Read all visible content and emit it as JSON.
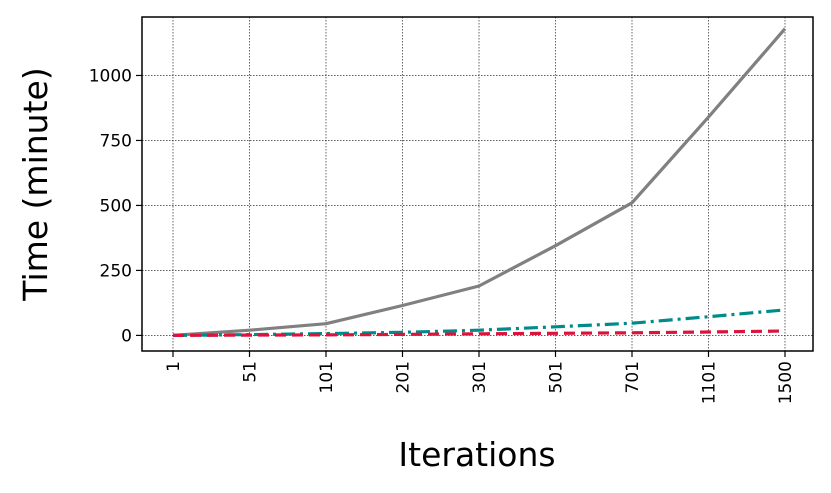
{
  "chart_data": {
    "type": "line",
    "title": "",
    "xlabel": "Iterations",
    "ylabel": "Time (minute)",
    "categories": [
      "1",
      "51",
      "101",
      "201",
      "301",
      "501",
      "701",
      "1101",
      "1500"
    ],
    "ylim": [
      -60,
      1225
    ],
    "yticks": [
      0,
      250,
      500,
      750,
      1000
    ],
    "yticklabels": [
      "0",
      "250",
      "500",
      "750",
      "1000"
    ],
    "grid": true,
    "legend": "none",
    "series": [
      {
        "color": "#808080",
        "style": "solid",
        "values": [
          0,
          20,
          45,
          115,
          190,
          345,
          510,
          840,
          1180
        ]
      },
      {
        "color": "#008B8B",
        "style": "dashdot",
        "values": [
          0,
          3,
          7,
          12,
          20,
          33,
          47,
          72,
          98
        ]
      },
      {
        "color": "#DC143C",
        "style": "dashed",
        "values": [
          0,
          1,
          2,
          4,
          6,
          8,
          10,
          13,
          17
        ]
      }
    ]
  }
}
